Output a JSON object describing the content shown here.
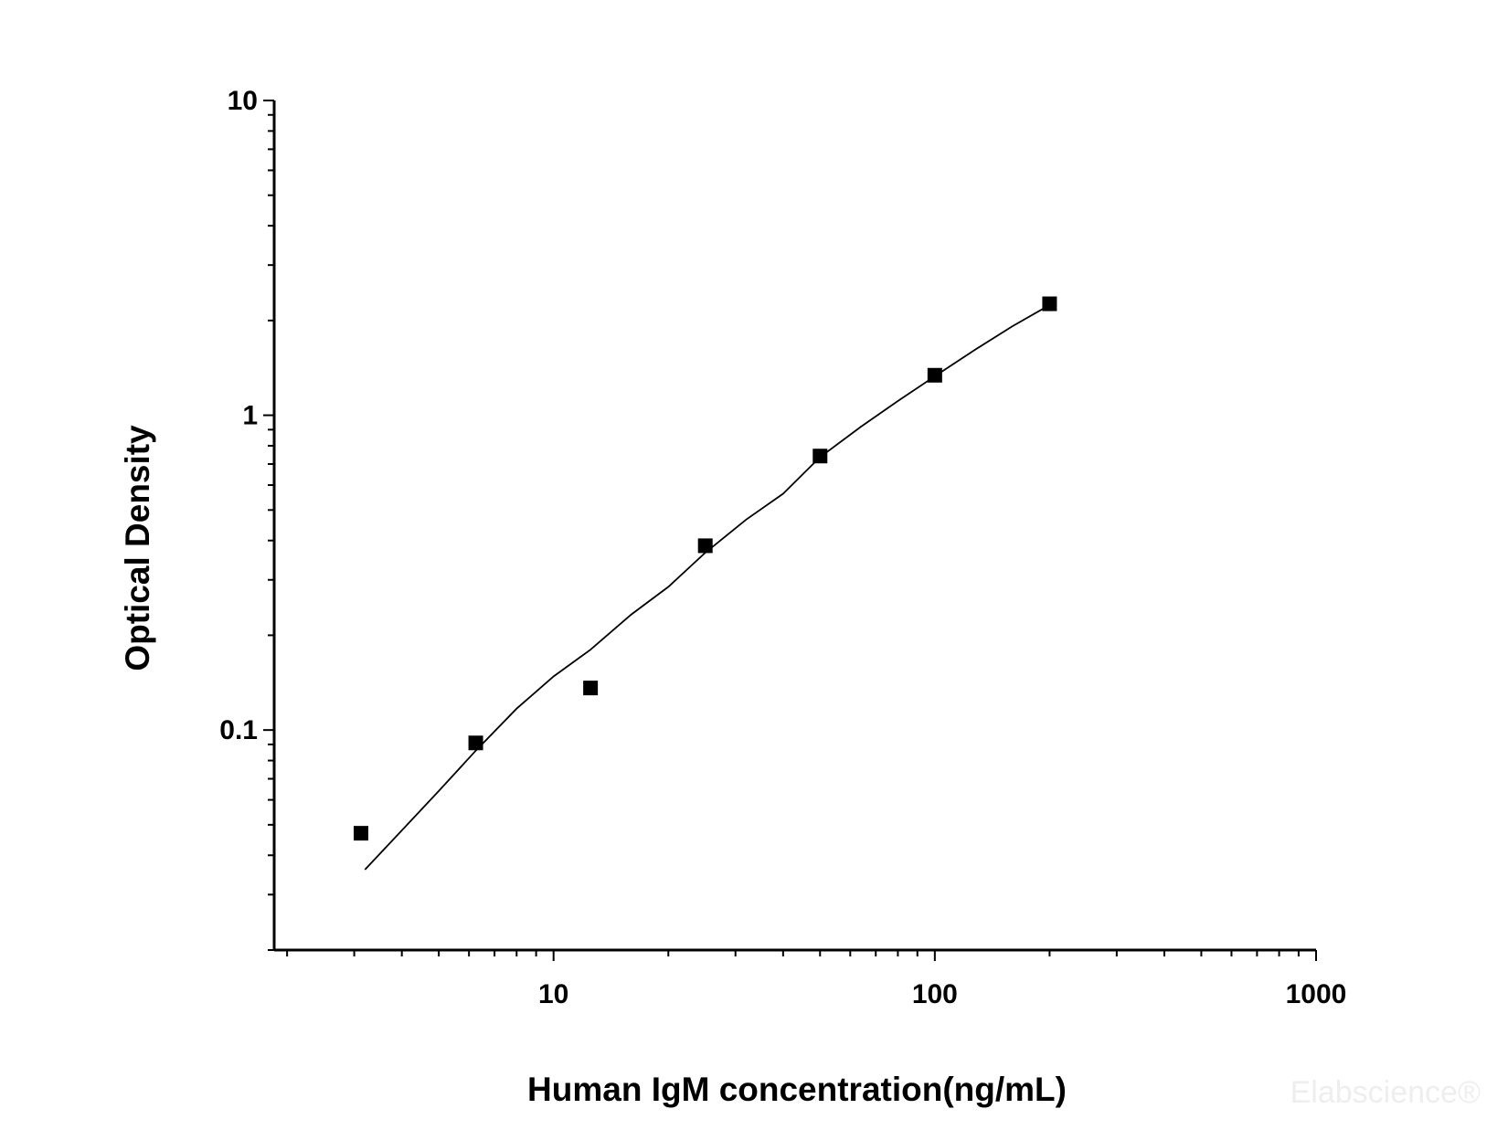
{
  "chart_data": {
    "type": "scatter",
    "x_scale": "log",
    "y_scale": "log",
    "xlim": [
      1.85,
      1000
    ],
    "ylim": [
      0.02,
      10
    ],
    "x_ticks": [
      {
        "value": 10,
        "label": "10"
      },
      {
        "value": 100,
        "label": "100"
      },
      {
        "value": 1000,
        "label": "1000"
      }
    ],
    "y_ticks": [
      {
        "value": 0.1,
        "label": "0.1"
      },
      {
        "value": 1,
        "label": "1"
      },
      {
        "value": 10,
        "label": "10"
      }
    ],
    "xlabel": "Human IgM concentration(ng/mL)",
    "ylabel": "Optical Density",
    "grid": false,
    "series": [
      {
        "marker": "square",
        "color": "#000000",
        "x": [
          3.125,
          6.25,
          12.5,
          25,
          50,
          100,
          200
        ],
        "y": [
          0.047,
          0.091,
          0.136,
          0.385,
          0.742,
          1.34,
          2.26
        ]
      }
    ],
    "fit_curve": {
      "color": "#000000",
      "x": [
        3.2,
        4,
        5,
        6.25,
        8,
        10,
        12.5,
        16,
        20,
        25,
        32,
        40,
        50,
        64,
        80,
        100,
        128,
        160,
        200
      ],
      "y": [
        0.036,
        0.048,
        0.064,
        0.086,
        0.117,
        0.148,
        0.18,
        0.233,
        0.285,
        0.366,
        0.466,
        0.563,
        0.736,
        0.92,
        1.11,
        1.33,
        1.62,
        1.92,
        2.24
      ]
    }
  },
  "watermark": "Elabscience®"
}
